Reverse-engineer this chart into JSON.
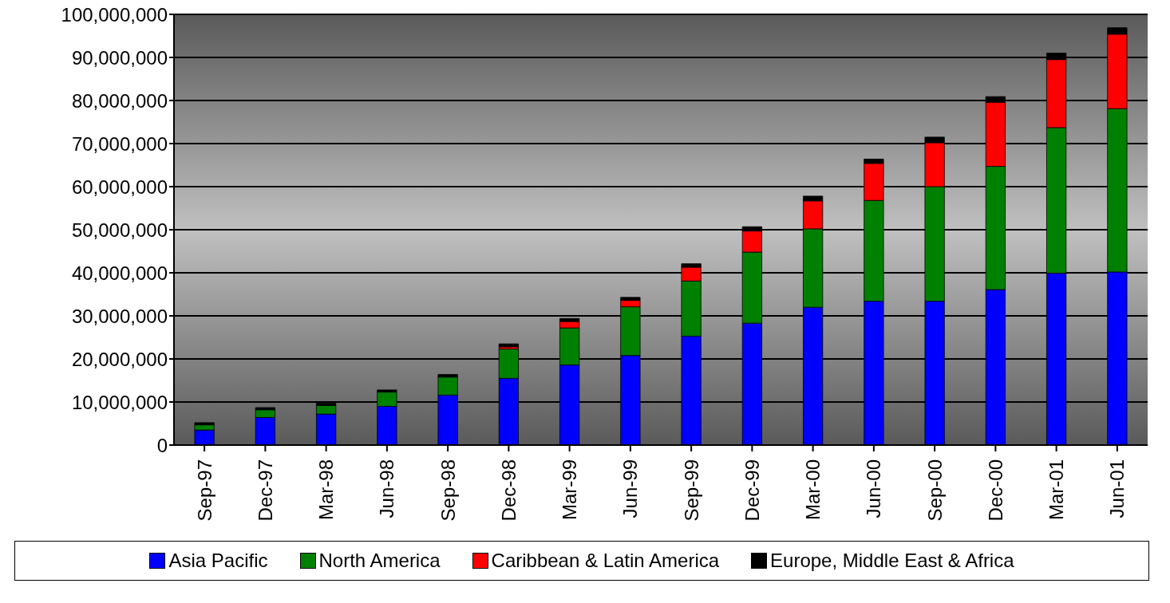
{
  "chart_data": {
    "type": "bar",
    "stacked": true,
    "grid": "y",
    "legend": "bottom",
    "categories": [
      "Sep-97",
      "Dec-97",
      "Mar-98",
      "Jun-98",
      "Sep-98",
      "Dec-98",
      "Mar-99",
      "Jun-99",
      "Sep-99",
      "Dec-99",
      "Mar-00",
      "Jun-00",
      "Sep-00",
      "Dec-00",
      "Mar-01",
      "Jun-01"
    ],
    "series": [
      {
        "name": "Asia Pacific",
        "color": "#0000ff",
        "values": [
          3500000,
          6400000,
          7200000,
          9000000,
          11600000,
          15500000,
          18600000,
          20800000,
          25300000,
          28300000,
          32000000,
          33400000,
          33400000,
          36100000,
          39900000,
          40200000
        ]
      },
      {
        "name": "North America",
        "color": "#008000",
        "values": [
          1200000,
          1800000,
          2000000,
          3300000,
          4200000,
          6800000,
          8600000,
          11300000,
          12800000,
          16500000,
          18200000,
          23400000,
          26600000,
          28600000,
          33800000,
          37900000
        ]
      },
      {
        "name": "Caribbean & Latin America",
        "color": "#ff0000",
        "values": [
          0,
          0,
          0,
          0,
          0,
          500000,
          1500000,
          1500000,
          3200000,
          4900000,
          6500000,
          8600000,
          10200000,
          14900000,
          15800000,
          17300000
        ]
      },
      {
        "name": "Europe, Middle East & Africa",
        "color": "#000000",
        "values": [
          500000,
          500000,
          500000,
          500000,
          600000,
          700000,
          700000,
          700000,
          800000,
          1000000,
          1100000,
          1000000,
          1300000,
          1300000,
          1500000,
          1500000
        ]
      }
    ],
    "ylim": [
      0,
      100000000
    ],
    "yticks": [
      {
        "value": 0,
        "label": "0"
      },
      {
        "value": 10000000,
        "label": "10,000,000"
      },
      {
        "value": 20000000,
        "label": "20,000,000"
      },
      {
        "value": 30000000,
        "label": "30,000,000"
      },
      {
        "value": 40000000,
        "label": "40,000,000"
      },
      {
        "value": 50000000,
        "label": "50,000,000"
      },
      {
        "value": 60000000,
        "label": "60,000,000"
      },
      {
        "value": 70000000,
        "label": "70,000,000"
      },
      {
        "value": 80000000,
        "label": "80,000,000"
      },
      {
        "value": 90000000,
        "label": "90,000,000"
      },
      {
        "value": 100000000,
        "label": "100,000,000"
      }
    ]
  }
}
